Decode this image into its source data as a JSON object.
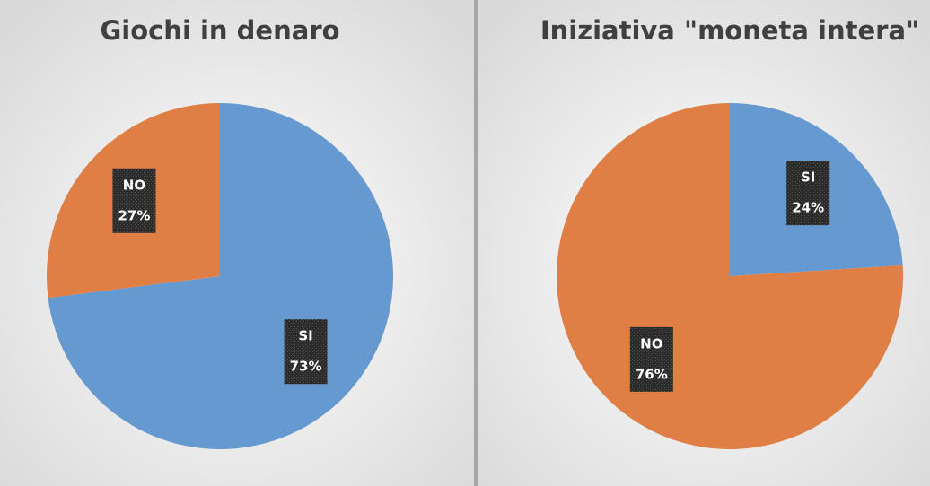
{
  "chart_data": [
    {
      "type": "pie",
      "title": "Giochi in denaro",
      "categories": [
        "SI",
        "NO"
      ],
      "values": [
        73,
        27
      ],
      "value_labels": [
        "73%",
        "27%"
      ],
      "colors": [
        "#6699d0",
        "#e07f45"
      ]
    },
    {
      "type": "pie",
      "title": "Iniziativa \"moneta intera\"",
      "categories": [
        "SI",
        "NO"
      ],
      "values": [
        24,
        76
      ],
      "value_labels": [
        "24%",
        "76%"
      ],
      "colors": [
        "#6699d0",
        "#e07f45"
      ]
    }
  ]
}
